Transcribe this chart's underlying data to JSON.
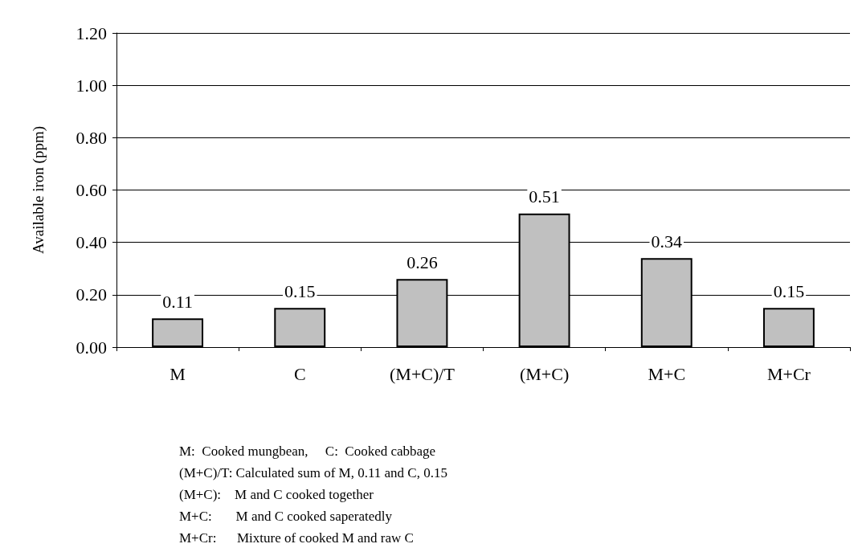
{
  "chart_data": {
    "type": "bar",
    "ylabel": "Available iron (ppm)",
    "categories": [
      "M",
      "C",
      "(M+C)/T",
      "(M+C)",
      "M+C",
      "M+Cr"
    ],
    "values": [
      0.11,
      0.15,
      0.26,
      0.51,
      0.34,
      0.15
    ],
    "color": "#c0c0c0",
    "ylim": [
      0,
      1.2
    ],
    "yticks": [
      {
        "value": 0,
        "label": "0.00"
      },
      {
        "value": 0.2,
        "label": "0.20"
      },
      {
        "value": 0.4,
        "label": "0.40"
      },
      {
        "value": 0.6,
        "label": "0.60"
      },
      {
        "value": 0.8,
        "label": "0.80"
      },
      {
        "value": 1.0,
        "label": "1.00"
      },
      {
        "value": 1.2,
        "label": "1.20"
      }
    ],
    "grid": "y",
    "data_labels": true,
    "annotations": [
      "M:  Cooked mungbean,     C:  Cooked cabbage",
      "(M+C)/T: Calculated sum of M, 0.11 and C, 0.15",
      "(M+C):    M and C cooked together",
      "M+C:       M and C cooked saperatedly",
      "M+Cr:      Mixture of cooked M and raw C"
    ]
  }
}
